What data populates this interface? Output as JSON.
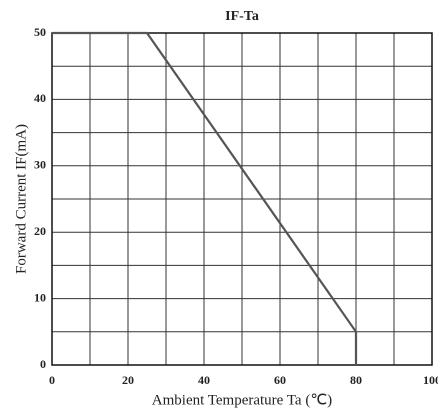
{
  "chart_data": {
    "type": "line",
    "title": "IF-Ta",
    "x_label": "Ambient Temperature Ta (℃)",
    "y_label": "Forward Current IF(mA)",
    "x": [
      0,
      25,
      80,
      80
    ],
    "series": [
      {
        "name": "IF",
        "color": "#555555",
        "values": [
          50,
          50,
          5,
          0
        ]
      }
    ],
    "xlim": [
      0,
      100
    ],
    "ylim": [
      0,
      50
    ],
    "xticks": [
      0,
      20,
      40,
      60,
      80,
      100
    ],
    "yticks": [
      0,
      10,
      20,
      30,
      40,
      50
    ],
    "xgrid": [
      0,
      10,
      20,
      30,
      40,
      50,
      60,
      70,
      80,
      90,
      100
    ],
    "ygrid": [
      0,
      5,
      10,
      15,
      20,
      25,
      30,
      35,
      40,
      45,
      50
    ],
    "grid": true
  }
}
